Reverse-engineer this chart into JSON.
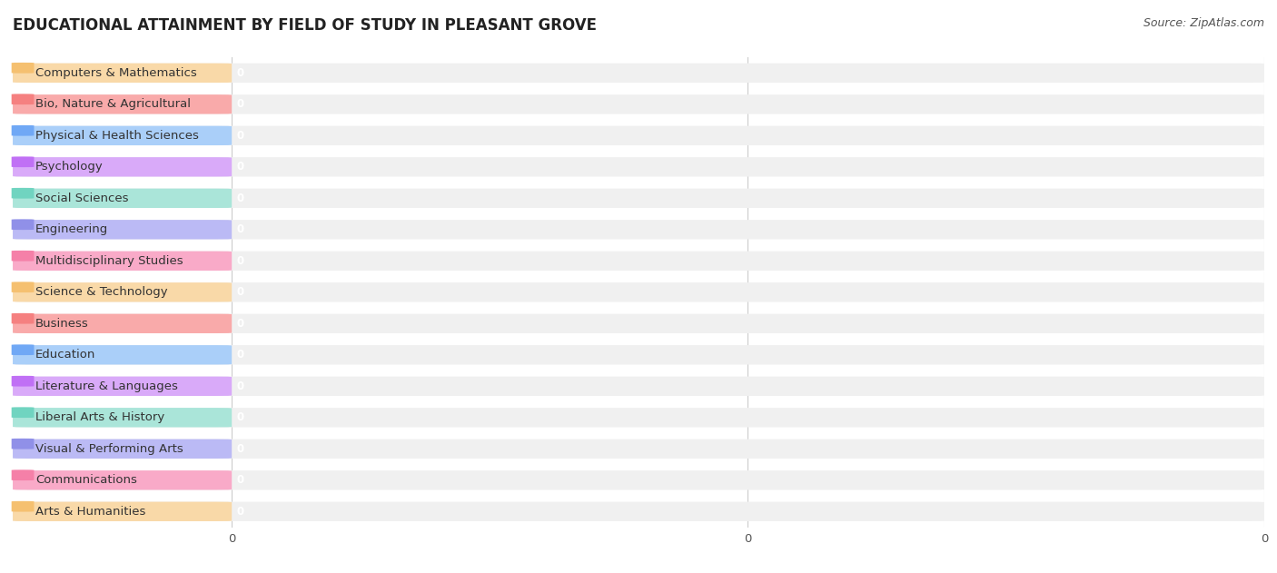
{
  "title": "EDUCATIONAL ATTAINMENT BY FIELD OF STUDY IN PLEASANT GROVE",
  "source": "Source: ZipAtlas.com",
  "categories": [
    "Computers & Mathematics",
    "Bio, Nature & Agricultural",
    "Physical & Health Sciences",
    "Psychology",
    "Social Sciences",
    "Engineering",
    "Multidisciplinary Studies",
    "Science & Technology",
    "Business",
    "Education",
    "Literature & Languages",
    "Liberal Arts & History",
    "Visual & Performing Arts",
    "Communications",
    "Arts & Humanities"
  ],
  "values": [
    0,
    0,
    0,
    0,
    0,
    0,
    0,
    0,
    0,
    0,
    0,
    0,
    0,
    0,
    0
  ],
  "bar_colors": [
    "#F9D9A8",
    "#F9AAAA",
    "#AACFF9",
    "#D9AAF9",
    "#AAE5D9",
    "#BBBAF5",
    "#F9AAC8",
    "#F9D9A8",
    "#F9AAAA",
    "#AACFF9",
    "#D9AAF9",
    "#AAE5D9",
    "#BBBAF5",
    "#F9AAC8",
    "#F9D9A8"
  ],
  "dot_colors": [
    "#F5C070",
    "#F58080",
    "#70A8F5",
    "#C070F5",
    "#70D4C0",
    "#9090E8",
    "#F580A8",
    "#F5C070",
    "#F58080",
    "#70A8F5",
    "#C070F5",
    "#70D4C0",
    "#9090E8",
    "#F580A8",
    "#F5C070"
  ],
  "background_color": "#ffffff",
  "bar_background_color": "#f0f0f0",
  "title_fontsize": 12,
  "label_fontsize": 9.5
}
